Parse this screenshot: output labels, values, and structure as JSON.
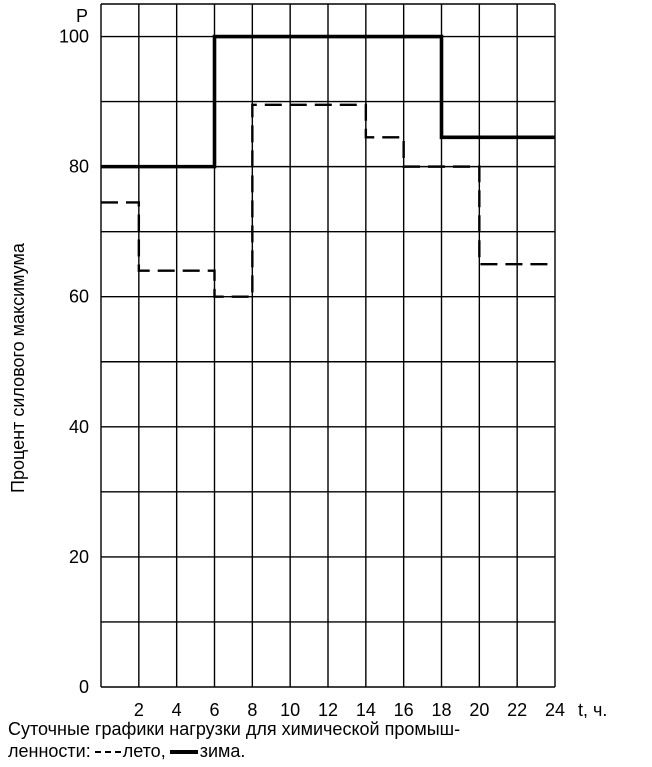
{
  "chart_data": {
    "type": "line",
    "step": true,
    "title": "Суточные графики нагрузки для химической промыш-ленности:",
    "caption_line1": "Суточные графики нагрузки для химической промыш-",
    "caption_line2": "ленности:",
    "ylabel": "Процент силового максимума",
    "y_axis_letter": "Р",
    "xlabel": "t, ч.",
    "xlim": [
      0,
      24
    ],
    "ylim": [
      0,
      105
    ],
    "x_ticks": [
      2,
      4,
      6,
      8,
      10,
      12,
      14,
      16,
      18,
      20,
      22,
      24
    ],
    "y_ticks": [
      0,
      20,
      40,
      60,
      80,
      100
    ],
    "grid": true,
    "legend_placement": "bottom",
    "series": [
      {
        "name": "лето",
        "style": "dashed",
        "color": "#000000",
        "x": [
          0,
          2,
          6,
          8,
          14,
          16,
          20,
          24
        ],
        "y": [
          74.5,
          64,
          60,
          89.5,
          84.5,
          80,
          65,
          65
        ]
      },
      {
        "name": "зима",
        "style": "solid",
        "color": "#000000",
        "x": [
          0,
          6,
          18,
          24
        ],
        "y": [
          80,
          100,
          84.5,
          84.5
        ]
      }
    ]
  }
}
